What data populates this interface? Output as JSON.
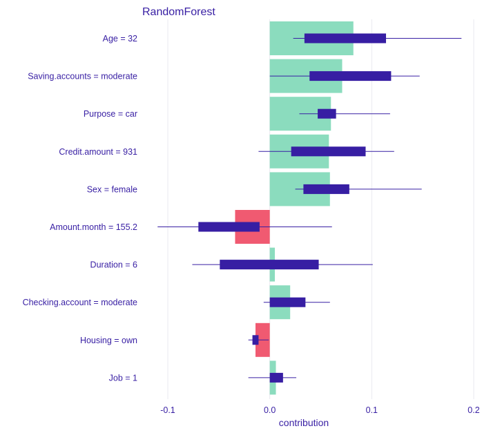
{
  "chart_data": {
    "type": "bar",
    "title": "RandomForest",
    "xlabel": "contribution",
    "ylabel": "",
    "xlim": [
      -0.1,
      0.2
    ],
    "x_ticks": [
      "-0.1",
      "0.0",
      "0.1",
      "0.2"
    ],
    "x_tick_values": [
      -0.1,
      0.0,
      0.1,
      0.2
    ],
    "grid": true,
    "legend": "none",
    "colors": {
      "positive": "#8bdcbe",
      "negative": "#f05a71",
      "boxplot": "#371ea3",
      "text": "#371ea3",
      "grid": "#e9e9ef"
    },
    "categories": [
      "Age = 32",
      "Saving.accounts = moderate",
      "Purpose = car",
      "Credit.amount = 931",
      "Sex = female",
      "Amount.month = 155.2",
      "Duration = 6",
      "Checking.account = moderate",
      "Housing = own",
      "Job = 1"
    ],
    "values": [
      0.082,
      0.071,
      0.06,
      0.058,
      0.059,
      -0.034,
      0.005,
      0.02,
      -0.014,
      0.006
    ],
    "boxplots": [
      {
        "min": 0.023,
        "q1": 0.034,
        "q3": 0.114,
        "max": 0.188
      },
      {
        "min": 0.0,
        "q1": 0.039,
        "q3": 0.119,
        "max": 0.147
      },
      {
        "min": 0.029,
        "q1": 0.047,
        "q3": 0.065,
        "max": 0.118
      },
      {
        "min": -0.011,
        "q1": 0.021,
        "q3": 0.094,
        "max": 0.122
      },
      {
        "min": 0.025,
        "q1": 0.033,
        "q3": 0.078,
        "max": 0.149
      },
      {
        "min": -0.11,
        "q1": -0.07,
        "q3": -0.01,
        "max": 0.061
      },
      {
        "min": -0.076,
        "q1": -0.049,
        "q3": 0.048,
        "max": 0.101
      },
      {
        "min": -0.006,
        "q1": 0.0,
        "q3": 0.035,
        "max": 0.059
      },
      {
        "min": -0.021,
        "q1": -0.017,
        "q3": -0.011,
        "max": -0.001
      },
      {
        "min": -0.021,
        "q1": 0.0,
        "q3": 0.013,
        "max": 0.026
      }
    ]
  }
}
